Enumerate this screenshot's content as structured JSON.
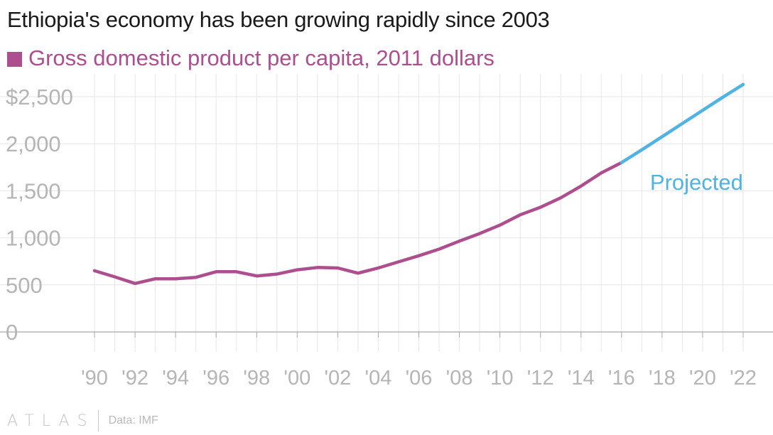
{
  "title": "Ethiopia's economy has been growing rapidly since 2003",
  "footer": {
    "brand": "ATLAS",
    "source": "Data: IMF"
  },
  "colors": {
    "series": "#ad4f8f",
    "projected": "#4fb3e4",
    "grid": "#e6e6e6",
    "axis_text": "#b5b5b5",
    "baseline": "#a8a8a8"
  },
  "chart_data": {
    "type": "line",
    "ylim": [
      0,
      2500
    ],
    "xlim": [
      1990,
      2022
    ],
    "y_ticks": [
      {
        "value": 0,
        "label": "0"
      },
      {
        "value": 500,
        "label": "500"
      },
      {
        "value": 1000,
        "label": "1,000"
      },
      {
        "value": 1500,
        "label": "1,500"
      },
      {
        "value": 2000,
        "label": "2,000"
      },
      {
        "value": 2500,
        "label": "$2,500"
      }
    ],
    "x_ticks": [
      {
        "value": 1990,
        "label": "'90"
      },
      {
        "value": 1992,
        "label": "'92"
      },
      {
        "value": 1994,
        "label": "'94"
      },
      {
        "value": 1996,
        "label": "'96"
      },
      {
        "value": 1998,
        "label": "'98"
      },
      {
        "value": 2000,
        "label": "'00"
      },
      {
        "value": 2002,
        "label": "'02"
      },
      {
        "value": 2004,
        "label": "'04"
      },
      {
        "value": 2006,
        "label": "'06"
      },
      {
        "value": 2008,
        "label": "'08"
      },
      {
        "value": 2010,
        "label": "'10"
      },
      {
        "value": 2012,
        "label": "'12"
      },
      {
        "value": 2014,
        "label": "'14"
      },
      {
        "value": 2016,
        "label": "'16"
      },
      {
        "value": 2018,
        "label": "'18"
      },
      {
        "value": 2020,
        "label": "'20"
      },
      {
        "value": 2022,
        "label": "'22"
      }
    ],
    "grid": true,
    "series": [
      {
        "name": "Gross domestic product per capita, 2011 dollars",
        "x": [
          1990,
          1991,
          1992,
          1993,
          1994,
          1995,
          1996,
          1997,
          1998,
          1999,
          2000,
          2001,
          2002,
          2003,
          2004,
          2005,
          2006,
          2007,
          2008,
          2009,
          2010,
          2011,
          2012,
          2013,
          2014,
          2015,
          2016
        ],
        "y": [
          650,
          585,
          515,
          565,
          565,
          580,
          640,
          640,
          595,
          615,
          660,
          685,
          680,
          625,
          680,
          745,
          810,
          880,
          965,
          1045,
          1135,
          1245,
          1325,
          1425,
          1550,
          1690,
          1800
        ]
      },
      {
        "name": "",
        "x": [
          2016,
          2017,
          2018,
          2019,
          2020,
          2021,
          2022
        ],
        "y": [
          1800,
          1935,
          2075,
          2215,
          2355,
          2495,
          2630
        ]
      }
    ],
    "annotations": [
      {
        "text": "Projected"
      }
    ]
  }
}
